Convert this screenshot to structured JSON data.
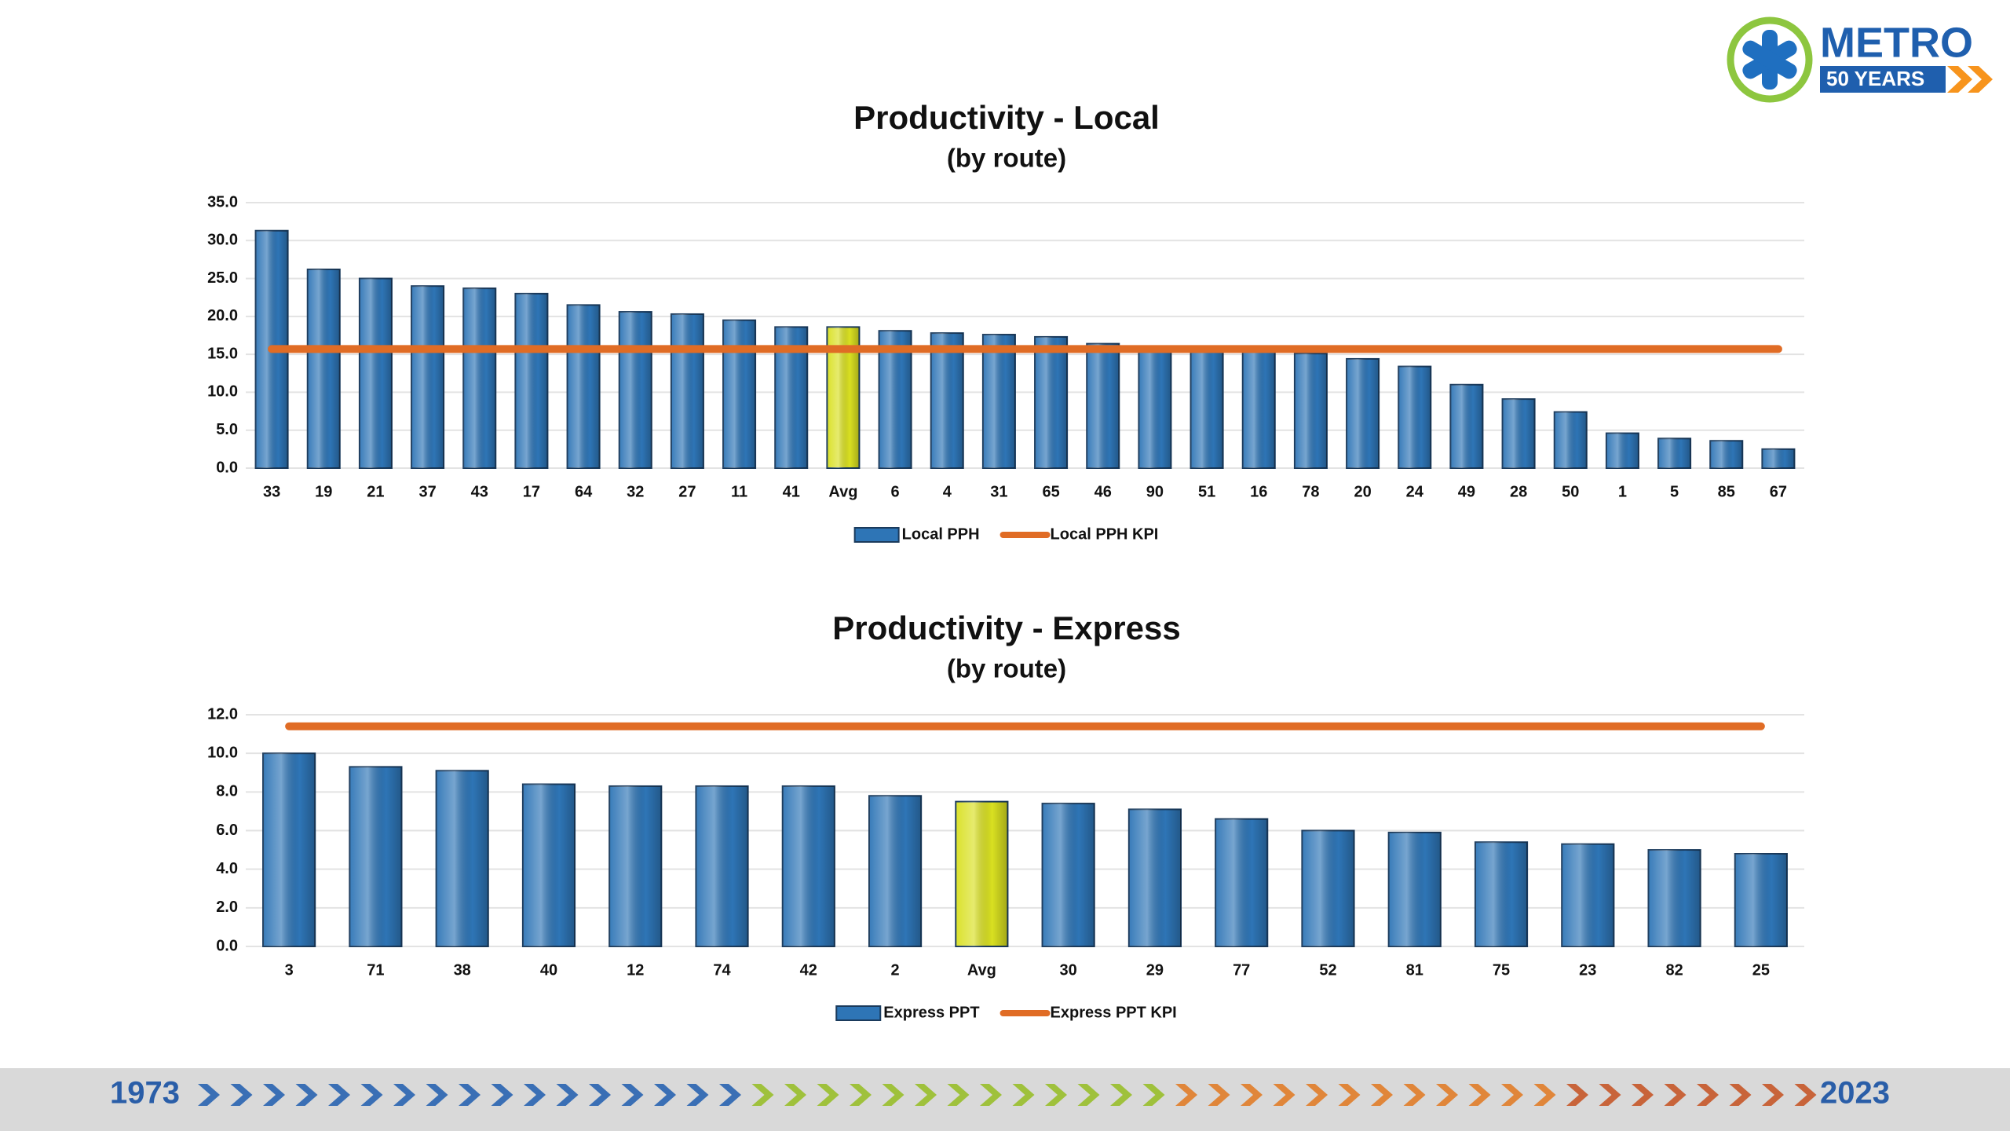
{
  "logo": {
    "name": "METRO",
    "tagline": "50 YEARS"
  },
  "footer": {
    "start": "1973",
    "end": "2023"
  },
  "chart_data": [
    {
      "type": "bar",
      "title": "Productivity - Local",
      "subtitle": "(by route)",
      "categories": [
        "33",
        "19",
        "21",
        "37",
        "43",
        "17",
        "64",
        "32",
        "27",
        "11",
        "41",
        "Avg",
        "6",
        "4",
        "31",
        "65",
        "46",
        "90",
        "51",
        "16",
        "78",
        "20",
        "24",
        "49",
        "28",
        "50",
        "1",
        "5",
        "85",
        "67"
      ],
      "series": [
        {
          "name": "Local PPH",
          "type": "bar",
          "color": "#2e75b6",
          "colors": [
            "#2e75b6",
            "#2e75b6",
            "#2e75b6",
            "#2e75b6",
            "#2e75b6",
            "#2e75b6",
            "#2e75b6",
            "#2e75b6",
            "#2e75b6",
            "#2e75b6",
            "#2e75b6",
            "#d9e021",
            "#2e75b6",
            "#2e75b6",
            "#2e75b6",
            "#2e75b6",
            "#2e75b6",
            "#2e75b6",
            "#2e75b6",
            "#2e75b6",
            "#2e75b6",
            "#2e75b6",
            "#2e75b6",
            "#2e75b6",
            "#2e75b6",
            "#2e75b6",
            "#2e75b6",
            "#2e75b6",
            "#2e75b6",
            "#2e75b6"
          ],
          "values": [
            31.3,
            26.2,
            25.0,
            24.0,
            23.7,
            23.0,
            21.5,
            20.6,
            20.3,
            19.5,
            18.6,
            18.6,
            18.1,
            17.8,
            17.6,
            17.3,
            16.4,
            15.8,
            15.6,
            15.4,
            15.1,
            14.4,
            13.4,
            11.0,
            9.1,
            7.4,
            4.6,
            3.9,
            3.6,
            2.5
          ]
        },
        {
          "name": "Local PPH KPI",
          "type": "line",
          "color": "#e06c25",
          "values": [
            15.7,
            15.7,
            15.7,
            15.7,
            15.7,
            15.7,
            15.7,
            15.7,
            15.7,
            15.7,
            15.7,
            15.7,
            15.7,
            15.7,
            15.7,
            15.7,
            15.7,
            15.7,
            15.7,
            15.7,
            15.7,
            15.7,
            15.7,
            15.7,
            15.7,
            15.7,
            15.7,
            15.7,
            15.7,
            15.7
          ]
        }
      ],
      "ylim": [
        0,
        35
      ],
      "yticks": [
        {
          "value": 0,
          "label": "0.0"
        },
        {
          "value": 5,
          "label": "5.0"
        },
        {
          "value": 10,
          "label": "10.0"
        },
        {
          "value": 15,
          "label": "15.0"
        },
        {
          "value": 20,
          "label": "20.0"
        },
        {
          "value": 25,
          "label": "25.0"
        },
        {
          "value": 30,
          "label": "30.0"
        },
        {
          "value": 35,
          "label": "35.0"
        }
      ],
      "grid": true,
      "legend": "bottom"
    },
    {
      "type": "bar",
      "title": "Productivity - Express",
      "subtitle": "(by route)",
      "categories": [
        "3",
        "71",
        "38",
        "40",
        "12",
        "74",
        "42",
        "2",
        "Avg",
        "30",
        "29",
        "77",
        "52",
        "81",
        "75",
        "23",
        "82",
        "25"
      ],
      "series": [
        {
          "name": "Express PPT",
          "type": "bar",
          "color": "#2e75b6",
          "colors": [
            "#2e75b6",
            "#2e75b6",
            "#2e75b6",
            "#2e75b6",
            "#2e75b6",
            "#2e75b6",
            "#2e75b6",
            "#2e75b6",
            "#d9e021",
            "#2e75b6",
            "#2e75b6",
            "#2e75b6",
            "#2e75b6",
            "#2e75b6",
            "#2e75b6",
            "#2e75b6",
            "#2e75b6",
            "#2e75b6"
          ],
          "values": [
            10.0,
            9.3,
            9.1,
            8.4,
            8.3,
            8.3,
            8.3,
            7.8,
            7.5,
            7.4,
            7.1,
            6.6,
            6.0,
            5.9,
            5.4,
            5.3,
            5.0,
            4.8
          ]
        },
        {
          "name": "Express PPT KPI",
          "type": "line",
          "color": "#e06c25",
          "values": [
            11.4,
            11.4,
            11.4,
            11.4,
            11.4,
            11.4,
            11.4,
            11.4,
            11.4,
            11.4,
            11.4,
            11.4,
            11.4,
            11.4,
            11.4,
            11.4,
            11.4,
            11.4
          ]
        }
      ],
      "ylim": [
        0,
        12
      ],
      "yticks": [
        {
          "value": 0,
          "label": "0.0"
        },
        {
          "value": 2,
          "label": "2.0"
        },
        {
          "value": 4,
          "label": "4.0"
        },
        {
          "value": 6,
          "label": "6.0"
        },
        {
          "value": 8,
          "label": "8.0"
        },
        {
          "value": 10,
          "label": "10.0"
        },
        {
          "value": 12,
          "label": "12.0"
        }
      ],
      "grid": true,
      "legend": "bottom"
    }
  ]
}
